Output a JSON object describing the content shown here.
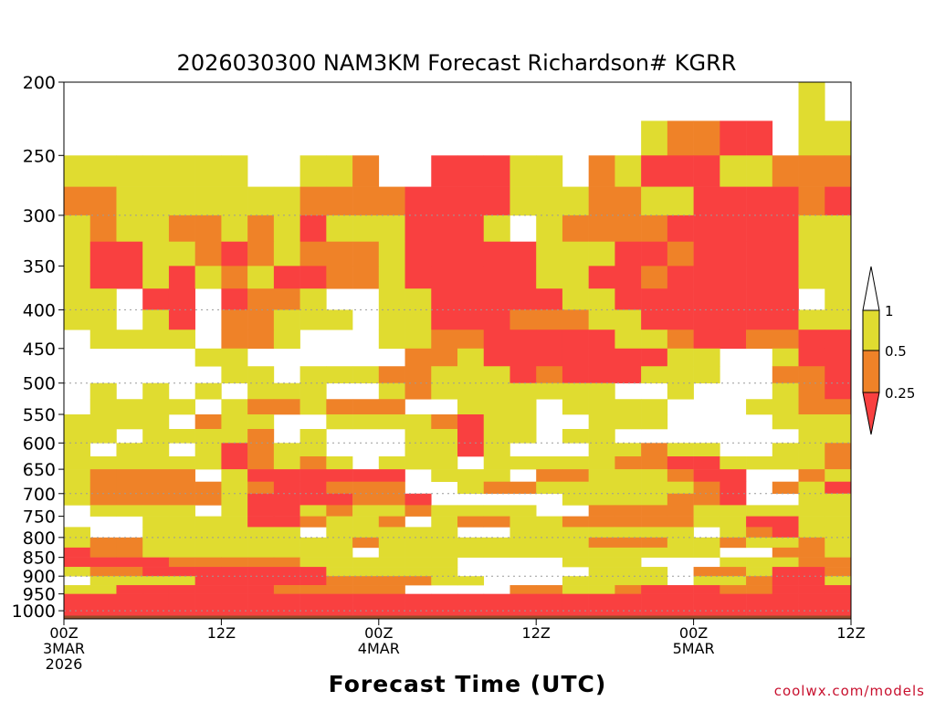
{
  "chart_data": {
    "type": "heatmap",
    "title": "2026030300 NAM3KM Forecast Richardson# KGRR",
    "xlabel": "Forecast Time (UTC)",
    "credit": "coolwx.com/models",
    "y_ticks": [
      "200",
      "250",
      "300",
      "350",
      "400",
      "450",
      "500",
      "550",
      "600",
      "650",
      "700",
      "750",
      "800",
      "850",
      "900",
      "950",
      "1000"
    ],
    "y_tick_values": [
      200,
      250,
      300,
      350,
      400,
      450,
      500,
      550,
      600,
      650,
      700,
      750,
      800,
      850,
      900,
      950,
      1000
    ],
    "y_log_scale": true,
    "ylim": [
      200,
      1025
    ],
    "xlim": [
      0,
      60
    ],
    "gridlines_hpa": [
      300,
      400,
      500,
      600,
      700,
      800,
      900,
      1000
    ],
    "x_ticks": [
      {
        "hour": 0,
        "line1": "00Z",
        "line2": "3MAR",
        "line3": "2026"
      },
      {
        "hour": 12,
        "line1": "12Z",
        "line2": "",
        "line3": ""
      },
      {
        "hour": 24,
        "line1": "00Z",
        "line2": "4MAR",
        "line3": ""
      },
      {
        "hour": 36,
        "line1": "12Z",
        "line2": "",
        "line3": ""
      },
      {
        "hour": 48,
        "line1": "00Z",
        "line2": "5MAR",
        "line3": ""
      },
      {
        "hour": 60,
        "line1": "12Z",
        "line2": "",
        "line3": ""
      }
    ],
    "legend": {
      "labels": [
        "1",
        "0.5",
        "0.25"
      ],
      "colors": {
        "yellow": "#e0dc30",
        "orange": "#ef8228",
        "red": "#f94040",
        "white": "#ffffff"
      },
      "meaning": {
        "Y": "0.5 to 1",
        "O": "0.25 to 0.5",
        "R": "below 0.25"
      }
    },
    "ground_color": "#9a4d2a",
    "ground_top_hpa": 1015,
    "levels_hpa": [
      200,
      225,
      250,
      275,
      300,
      325,
      350,
      375,
      400,
      425,
      450,
      475,
      500,
      525,
      550,
      575,
      600,
      625,
      650,
      675,
      700,
      725,
      750,
      775,
      800,
      825,
      850,
      875,
      900,
      925,
      950,
      975
    ],
    "hours": [
      0,
      2,
      4,
      6,
      8,
      10,
      12,
      14,
      16,
      18,
      20,
      22,
      24,
      26,
      28,
      30,
      32,
      34,
      36,
      38,
      40,
      42,
      44,
      46,
      48,
      50,
      52,
      54,
      56,
      58
    ],
    "grid": [
      "............................Y.",
      "......................YOORR.YY",
      "YYYYYYY..YYO..RRRYY.OYRRRYYOOO",
      "OOYYYYYYYOOOORRRRYYYOOYYRRRROR",
      "YOYYOOYOYRYYYRRRY.YOOOORRRRRYY",
      "YRRYYOROYOOOYRRRRRYYYRRORRRRYY",
      "YRRYRYOYRROOYRRRRRYYRRORRRRRYY",
      "YY.RR.ROOY..YYRRRRRYYRRRRRRR.Y",
      "YY.YR.OOYYY.YYRRROOOYYRRRRRRYY",
      ".YYYY.OOY...YYOORRRRRYYORROORR",
      ".....YY......OOYRRRRRRRYY..YRR",
      "......YY.YYYOOYYYRORRRYYY..OOR",
      ".Y.Y.Y.YYY..YOYYYYYYY..Y...YOR",
      ".YYYY.YOOYOOO..YYY.YYYY...YYOO",
      "YYYY.OYY..YYYYORYY..YYY....YYY",
      "YY.YYYYO.Y...YYRYY.YY.......YY",
      "Y.YY.YROYY...YYRY...YYOYY..YYO",
      "YYYYYYROYOY.YYY.YYYYYOORRYYYYO",
      "YOOOO.YRRRRRR.YYY.OOYYYORR..OY",
      "YOOOOOYORROOO..YOOYYYYYYOR.OYR",
      "YOOOOOYRRRROOR.....YYYYOOR..YY",
      ".YYYY.YRRYOYYOYYYY..OOOOYYYYYY",
      "...YYYYRROYYO.YOOYYOOOOOYYRRYY",
      "Y..YYYYYY.YYYYY..YYYYYYY.YORYY",
      "YOOYYYYYYYYOYYYYYYYYOOOYYOYYOY",
      "ROOYYYYYYYY.YYYYYYYYYYYYY..OOY",
      "RRRROOOOOYYYYYY....YYY...YYYOO",
      "YOORRRRRRRYYYYY.....YYY.OOYRRO",
      ".YYYYRRRRROOOOYY...YYYY.YYORRY",
      "YYRRRRRROOOOO....OOYYORRROORRR",
      "RRRRRRRRRRRRRRRRRRRRRRRRRRRRRR",
      "RRRRRRRRRRRRRRRRRRRRRRRRRRRRRR"
    ]
  }
}
